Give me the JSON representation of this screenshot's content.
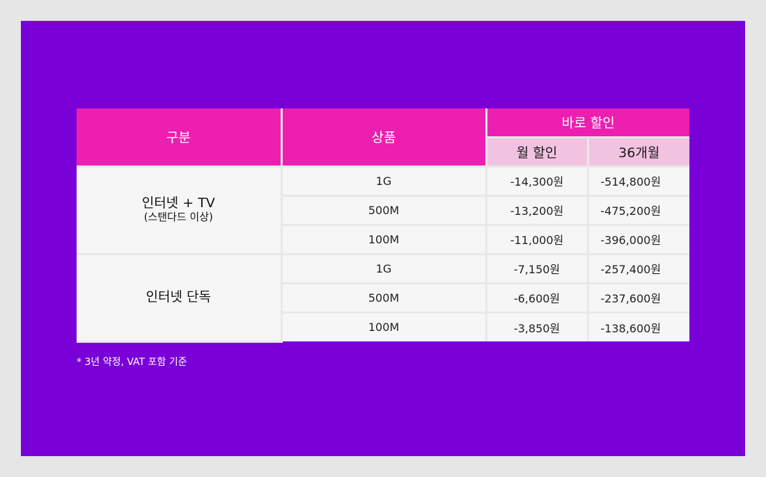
{
  "table": {
    "headers": {
      "category": "구분",
      "product": "상품",
      "discount_group": "바로 할인",
      "monthly": "월 할인",
      "months36": "36개월"
    },
    "groups": [
      {
        "name": "인터넷 + TV",
        "subname": "(스탠다드 이상)",
        "rows": [
          {
            "product": "1G",
            "monthly": "-14,300원",
            "total": "-514,800원"
          },
          {
            "product": "500M",
            "monthly": "-13,200원",
            "total": "-475,200원"
          },
          {
            "product": "100M",
            "monthly": "-11,000원",
            "total": "-396,000원"
          }
        ]
      },
      {
        "name": "인터넷 단독",
        "subname": "",
        "rows": [
          {
            "product": "1G",
            "monthly": "-7,150원",
            "total": "-257,400원"
          },
          {
            "product": "500M",
            "monthly": "-6,600원",
            "total": "-237,600원"
          },
          {
            "product": "100M",
            "monthly": "-3,850원",
            "total": "-138,600원"
          }
        ]
      }
    ]
  },
  "footnote": "* 3년 약정, VAT 포함 기준",
  "colors": {
    "background": "#7a00d8",
    "header": "#ec1fb0",
    "subheader": "#f2c2e1",
    "cell": "#f6f6f6"
  }
}
